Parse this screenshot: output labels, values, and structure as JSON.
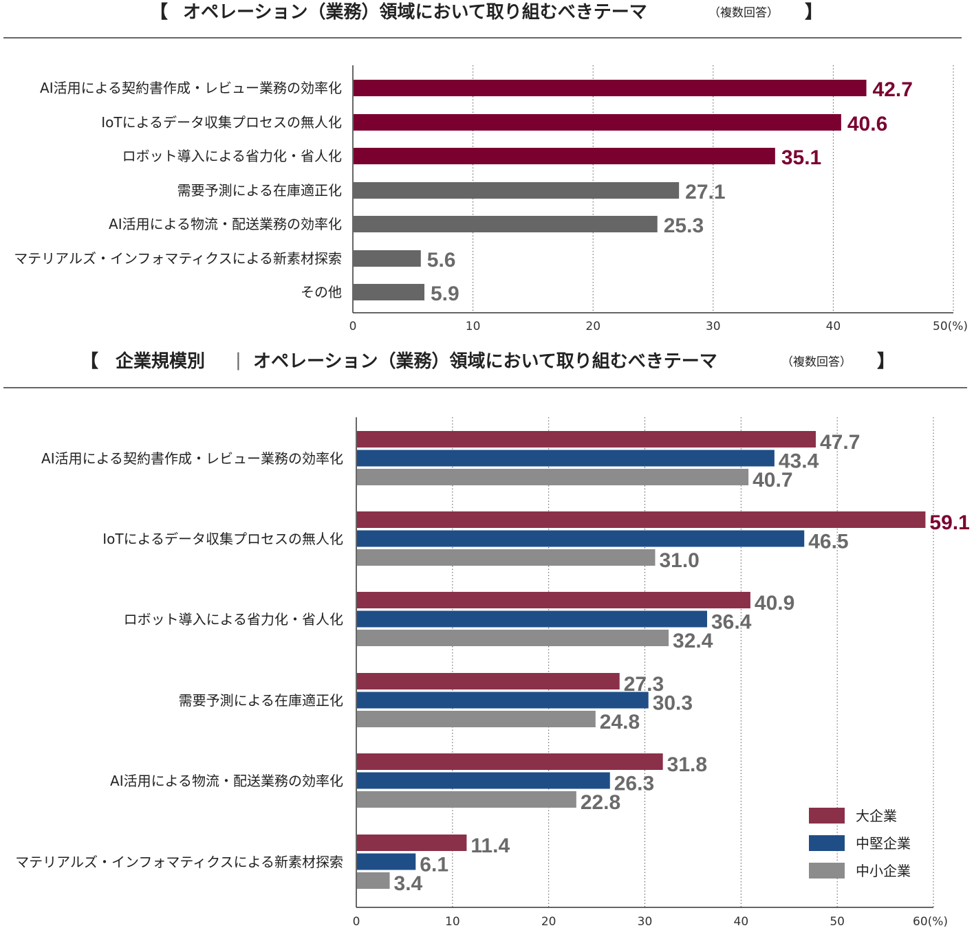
{
  "chart_data": [
    {
      "type": "bar",
      "orientation": "horizontal",
      "title": "オペレーション（業務）領域において取り組むべきテーマ",
      "subtitle": "（複数回答）",
      "categories": [
        "AI活用による契約書作成・レビュー業務の効率化",
        "IoTによるデータ収集プロセスの無人化",
        "ロボット導入による省力化・省人化",
        "需要予測による在庫適正化",
        "AI活用による物流・配送業務の効率化",
        "マテリアルズ・インフォマティクスによる新素材探索",
        "その他"
      ],
      "values": [
        42.7,
        40.6,
        35.1,
        27.1,
        25.3,
        5.6,
        5.9
      ],
      "value_labels": [
        "42.7",
        "40.6",
        "35.1",
        "27.1",
        "25.3",
        "5.6",
        "5.9"
      ],
      "highlight_colors": [
        "#7a0030",
        "#7a0030",
        "#7a0030",
        "#666666",
        "#666666",
        "#666666",
        "#666666"
      ],
      "xlim": [
        0,
        50
      ],
      "xticks": [
        "0",
        "10",
        "20",
        "30",
        "40",
        "50"
      ],
      "xunit": "(%)",
      "grid": "vertical dotted"
    },
    {
      "type": "bar",
      "orientation": "horizontal",
      "title_prefix": "企業規模別",
      "title": "オペレーション（業務）領域において取り組むべきテーマ",
      "subtitle": "（複数回答）",
      "categories": [
        "AI活用による契約書作成・レビュー業務の効率化",
        "IoTによるデータ収集プロセスの無人化",
        "ロボット導入による省力化・省人化",
        "需要予測による在庫適正化",
        "AI活用による物流・配送業務の効率化",
        "マテリアルズ・インフォマティクスによる新素材探索"
      ],
      "series": [
        {
          "name": "大企業",
          "color": "#8b3049",
          "values": [
            47.7,
            59.1,
            40.9,
            27.3,
            31.8,
            11.4
          ],
          "labels": [
            "47.7",
            "59.1",
            "40.9",
            "27.3",
            "31.8",
            "11.4"
          ]
        },
        {
          "name": "中堅企業",
          "color": "#1f4e87",
          "values": [
            43.4,
            46.5,
            36.4,
            30.3,
            26.3,
            6.1
          ],
          "labels": [
            "43.4",
            "46.5",
            "36.4",
            "30.3",
            "26.3",
            "6.1"
          ]
        },
        {
          "name": "中小企業",
          "color": "#8c8c8c",
          "values": [
            40.7,
            31.0,
            32.4,
            24.8,
            22.8,
            3.4
          ],
          "labels": [
            "40.7",
            "31.0",
            "32.4",
            "24.8",
            "22.8",
            "3.4"
          ]
        }
      ],
      "label_color": "#6a6a6a",
      "max_label_color": "#7a0030",
      "xlim": [
        0,
        60
      ],
      "xticks": [
        "0",
        "10",
        "20",
        "30",
        "40",
        "50",
        "60"
      ],
      "xunit": "(%)",
      "legend": "bottom-right",
      "grid": "vertical dotted"
    }
  ]
}
